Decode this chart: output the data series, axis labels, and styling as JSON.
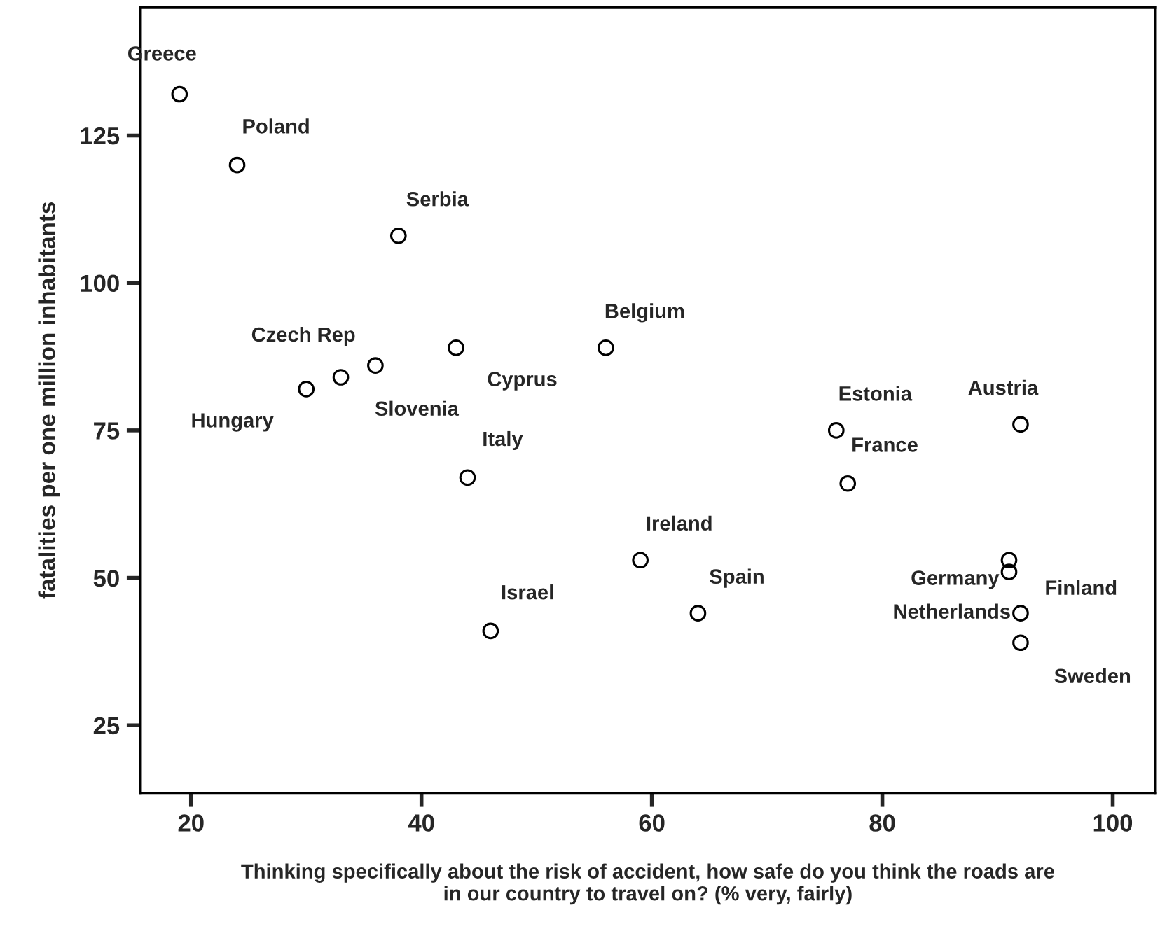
{
  "chart_data": {
    "type": "scatter",
    "xlabel": "Thinking specifically about the risk of accident, how safe do you think the roads are\nin our country to travel on? (% very, fairly)",
    "ylabel": "fatalities per one million inhabitants",
    "x": [
      19,
      24,
      38,
      36,
      33,
      30,
      43,
      56,
      44,
      46,
      59,
      64,
      76,
      77,
      92,
      91,
      91,
      92,
      92
    ],
    "series": [
      {
        "color": "#000000",
        "values": [
          132,
          120,
          108,
          86,
          84,
          82,
          89,
          89,
          67,
          41,
          53,
          44,
          75,
          66,
          76,
          53,
          51,
          44,
          39
        ]
      }
    ],
    "annotations": [
      {
        "text": "Greece",
        "x": 19,
        "y": 132
      },
      {
        "text": "Poland",
        "x": 24,
        "y": 120
      },
      {
        "text": "Serbia",
        "x": 38,
        "y": 108
      },
      {
        "text": "Czech Rep",
        "x": 36,
        "y": 86
      },
      {
        "text": "Slovenia",
        "x": 33,
        "y": 84
      },
      {
        "text": "Hungary",
        "x": 30,
        "y": 82
      },
      {
        "text": "Cyprus",
        "x": 43,
        "y": 89
      },
      {
        "text": "Belgium",
        "x": 56,
        "y": 89
      },
      {
        "text": "Italy",
        "x": 44,
        "y": 67
      },
      {
        "text": "Israel",
        "x": 46,
        "y": 41
      },
      {
        "text": "Ireland",
        "x": 59,
        "y": 53
      },
      {
        "text": "Spain",
        "x": 64,
        "y": 44
      },
      {
        "text": "Estonia",
        "x": 76,
        "y": 75
      },
      {
        "text": "France",
        "x": 77,
        "y": 66
      },
      {
        "text": "Austria",
        "x": 92,
        "y": 76
      },
      {
        "text": "Germany",
        "x": 91,
        "y": 53
      },
      {
        "text": "Finland",
        "x": 91,
        "y": 51
      },
      {
        "text": "Netherlands",
        "x": 92,
        "y": 44
      },
      {
        "text": "Sweden",
        "x": 92,
        "y": 39
      }
    ],
    "xlim": [
      15.6,
      103.7
    ],
    "xticks": [
      20,
      40,
      60,
      80,
      100
    ],
    "ylim": [
      13.5,
      146.7
    ],
    "yticks": [
      25,
      50,
      75,
      100,
      125
    ],
    "grid": false,
    "legend": false,
    "marker": "circle"
  }
}
